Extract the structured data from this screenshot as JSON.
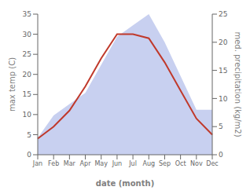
{
  "chart_data": {
    "type": "line",
    "xlabel": "date (month)",
    "ylabel": "max temp (C)",
    "y2label": "med. precipitation (kg/m2)",
    "categories": [
      "Jan",
      "Feb",
      "Mar",
      "Apr",
      "May",
      "Jun",
      "Jul",
      "Aug",
      "Sep",
      "Oct",
      "Nov",
      "Dec"
    ],
    "series": [
      {
        "type": "area",
        "color": "#c8d0f0",
        "axis": "y2",
        "values": [
          3,
          7,
          9,
          11,
          16,
          21,
          23,
          25,
          20,
          14,
          8,
          8
        ]
      },
      {
        "type": "line",
        "color": "#c0392b",
        "values": [
          4,
          7,
          11,
          17,
          24,
          30,
          30,
          29,
          23,
          16,
          9,
          5
        ]
      }
    ],
    "ylim": [
      0,
      35
    ],
    "yticks": [
      0,
      5,
      10,
      15,
      20,
      25,
      30,
      35
    ],
    "y2lim": [
      0,
      25
    ],
    "y2ticks": [
      0,
      5,
      10,
      15,
      20,
      25
    ],
    "grid": false
  }
}
